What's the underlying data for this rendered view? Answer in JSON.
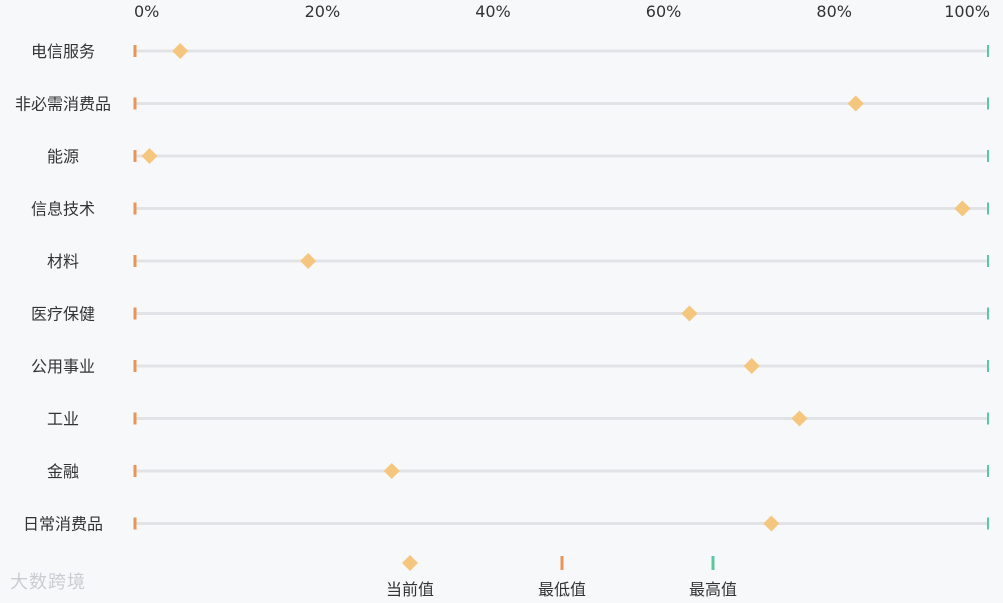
{
  "chart_data": {
    "type": "dot-range",
    "x_axis": {
      "range": [
        0,
        100
      ],
      "unit": "%",
      "ticks": [
        0,
        20,
        40,
        60,
        80,
        100
      ],
      "tick_labels": [
        "0%",
        "20%",
        "40%",
        "60%",
        "80%",
        "100%"
      ]
    },
    "categories": [
      "电信服务",
      "非必需消费品",
      "能源",
      "信息技术",
      "材料",
      "医疗保健",
      "公用事业",
      "工业",
      "金融",
      "日常消费品"
    ],
    "series": [
      {
        "name": "当前值",
        "marker": "diamond",
        "color": "#f5c77e",
        "values": [
          5.3,
          84.5,
          1.7,
          97.0,
          20.3,
          65.0,
          72.3,
          77.9,
          30.1,
          74.6
        ]
      },
      {
        "name": "最低值",
        "marker": "tick",
        "color": "#e8955a",
        "values": [
          0,
          0,
          0,
          0,
          0,
          0,
          0,
          0,
          0,
          0
        ]
      },
      {
        "name": "最高值",
        "marker": "tick",
        "color": "#5cc8a0",
        "values": [
          100,
          100,
          100,
          100,
          100,
          100,
          100,
          100,
          100,
          100
        ]
      }
    ],
    "grid": false,
    "legend": "bottom-center"
  },
  "watermark": "大数跨境"
}
